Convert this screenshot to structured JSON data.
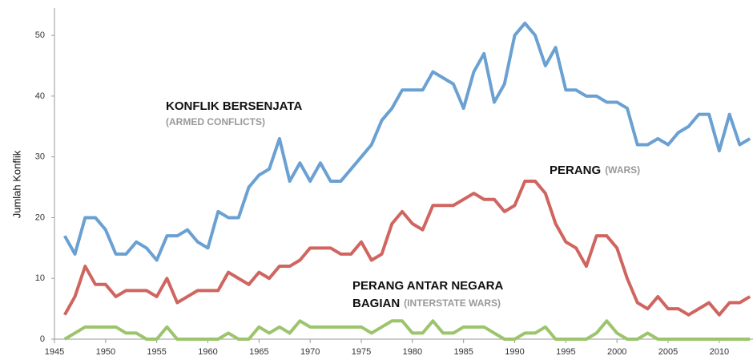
{
  "chart_data": {
    "type": "line",
    "ylabel": "Jumlah Konflik",
    "x": [
      1946,
      1947,
      1948,
      1949,
      1950,
      1951,
      1952,
      1953,
      1954,
      1955,
      1956,
      1957,
      1958,
      1959,
      1960,
      1961,
      1962,
      1963,
      1964,
      1965,
      1966,
      1967,
      1968,
      1969,
      1970,
      1971,
      1972,
      1973,
      1974,
      1975,
      1976,
      1977,
      1978,
      1979,
      1980,
      1981,
      1982,
      1983,
      1984,
      1985,
      1986,
      1987,
      1988,
      1989,
      1990,
      1991,
      1992,
      1993,
      1994,
      1995,
      1996,
      1997,
      1998,
      1999,
      2000,
      2001,
      2002,
      2003,
      2004,
      2005,
      2006,
      2007,
      2008,
      2009,
      2010,
      2011,
      2012,
      2013
    ],
    "series": [
      {
        "name": "KONFLIK BERSENJATA",
        "color": "#6aa0d2",
        "values": [
          17,
          14,
          20,
          20,
          18,
          14,
          14,
          16,
          15,
          13,
          17,
          17,
          18,
          16,
          15,
          21,
          20,
          20,
          25,
          27,
          28,
          33,
          26,
          29,
          26,
          29,
          26,
          26,
          28,
          30,
          32,
          36,
          38,
          41,
          41,
          41,
          44,
          43,
          42,
          38,
          44,
          47,
          39,
          42,
          50,
          52,
          50,
          45,
          48,
          41,
          41,
          40,
          40,
          39,
          39,
          38,
          32,
          32,
          33,
          32,
          34,
          35,
          37,
          37,
          31,
          37,
          32,
          33
        ]
      },
      {
        "name": "PERANG",
        "color": "#d06560",
        "values": [
          4,
          7,
          12,
          9,
          9,
          7,
          8,
          8,
          8,
          7,
          10,
          6,
          7,
          8,
          8,
          8,
          11,
          10,
          9,
          11,
          10,
          12,
          12,
          13,
          15,
          15,
          15,
          14,
          14,
          16,
          13,
          14,
          19,
          21,
          19,
          18,
          22,
          22,
          22,
          23,
          24,
          23,
          23,
          21,
          22,
          26,
          26,
          24,
          19,
          16,
          15,
          12,
          17,
          17,
          15,
          10,
          6,
          5,
          7,
          5,
          5,
          4,
          5,
          6,
          4,
          6,
          6,
          7
        ]
      },
      {
        "name": "PERANG ANTAR NEGARA BAGIAN",
        "color": "#9cc46c",
        "values": [
          0,
          1,
          2,
          2,
          2,
          2,
          1,
          1,
          0,
          0,
          2,
          0,
          0,
          0,
          0,
          0,
          1,
          0,
          0,
          2,
          1,
          2,
          1,
          3,
          2,
          2,
          2,
          2,
          2,
          2,
          1,
          2,
          3,
          3,
          1,
          1,
          3,
          1,
          1,
          2,
          2,
          2,
          1,
          0,
          0,
          1,
          1,
          2,
          0,
          0,
          0,
          0,
          1,
          3,
          1,
          0,
          0,
          1,
          0,
          0,
          0,
          0,
          0,
          0,
          0,
          0,
          0,
          0
        ]
      }
    ],
    "annotations": [
      {
        "title": [
          "KONFLIK BERSENJATA"
        ],
        "subtitle": "(ARMED CONFLICTS)"
      },
      {
        "title": [
          "PERANG"
        ],
        "subtitle": "(WARS)"
      },
      {
        "title": [
          "PERANG ANTAR NEGARA",
          "BAGIAN"
        ],
        "subtitle": "(INTERSTATE WARS)"
      }
    ],
    "xlim": [
      1945,
      2013.3
    ],
    "xticks": [
      1945,
      1950,
      1955,
      1960,
      1965,
      1970,
      1975,
      1980,
      1985,
      1990,
      1995,
      2000,
      2005,
      2010
    ],
    "ylim": [
      0,
      54.5
    ],
    "yticks": [
      0,
      10,
      20,
      30,
      40,
      50
    ],
    "grid": false
  }
}
